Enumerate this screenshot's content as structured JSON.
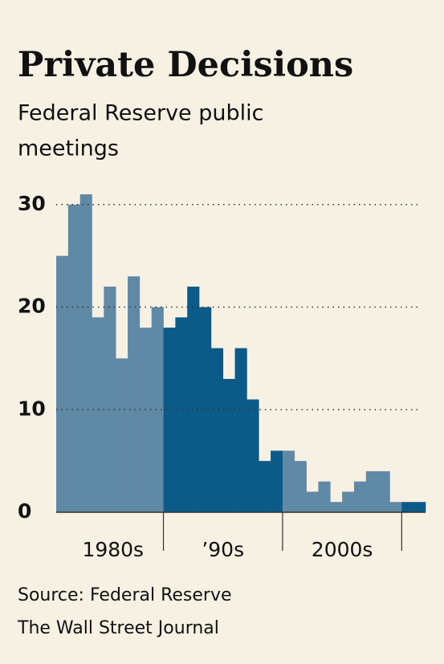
{
  "chart_data": {
    "type": "bar",
    "title": "Private Decisions",
    "subtitle": [
      "Federal Reserve public",
      "meetings"
    ],
    "categories": [
      null,
      null,
      null,
      null,
      null,
      null,
      null,
      null,
      null,
      null,
      null,
      null,
      null,
      null,
      null,
      null,
      null,
      null,
      null,
      null,
      null,
      null,
      null,
      null,
      null,
      null,
      null,
      null,
      null,
      null,
      null
    ],
    "values": [
      25,
      30,
      31,
      19,
      22,
      15,
      23,
      18,
      20,
      18,
      19,
      22,
      20,
      16,
      13,
      16,
      11,
      5,
      6,
      6,
      5,
      2,
      3,
      1,
      2,
      3,
      4,
      4,
      1,
      1,
      1
    ],
    "colors": [
      "#6089a6",
      "#6089a6",
      "#6089a6",
      "#6089a6",
      "#6089a6",
      "#6089a6",
      "#6089a6",
      "#6089a6",
      "#6089a6",
      "#0b5a88",
      "#0b5a88",
      "#0b5a88",
      "#0b5a88",
      "#0b5a88",
      "#0b5a88",
      "#0b5a88",
      "#0b5a88",
      "#0b5a88",
      "#0b5a88",
      "#6089a6",
      "#6089a6",
      "#6089a6",
      "#6089a6",
      "#6089a6",
      "#6089a6",
      "#6089a6",
      "#6089a6",
      "#6089a6",
      "#6089a6",
      "#0b5a88",
      "#0b5a88"
    ],
    "group_labels": [
      "1980s",
      "’90s",
      "2000s"
    ],
    "ylim": [
      0,
      31
    ],
    "yticks": [
      0,
      10,
      20,
      30
    ],
    "grid": true,
    "source": "Source: Federal Reserve",
    "credit": "The Wall Street Journal"
  }
}
